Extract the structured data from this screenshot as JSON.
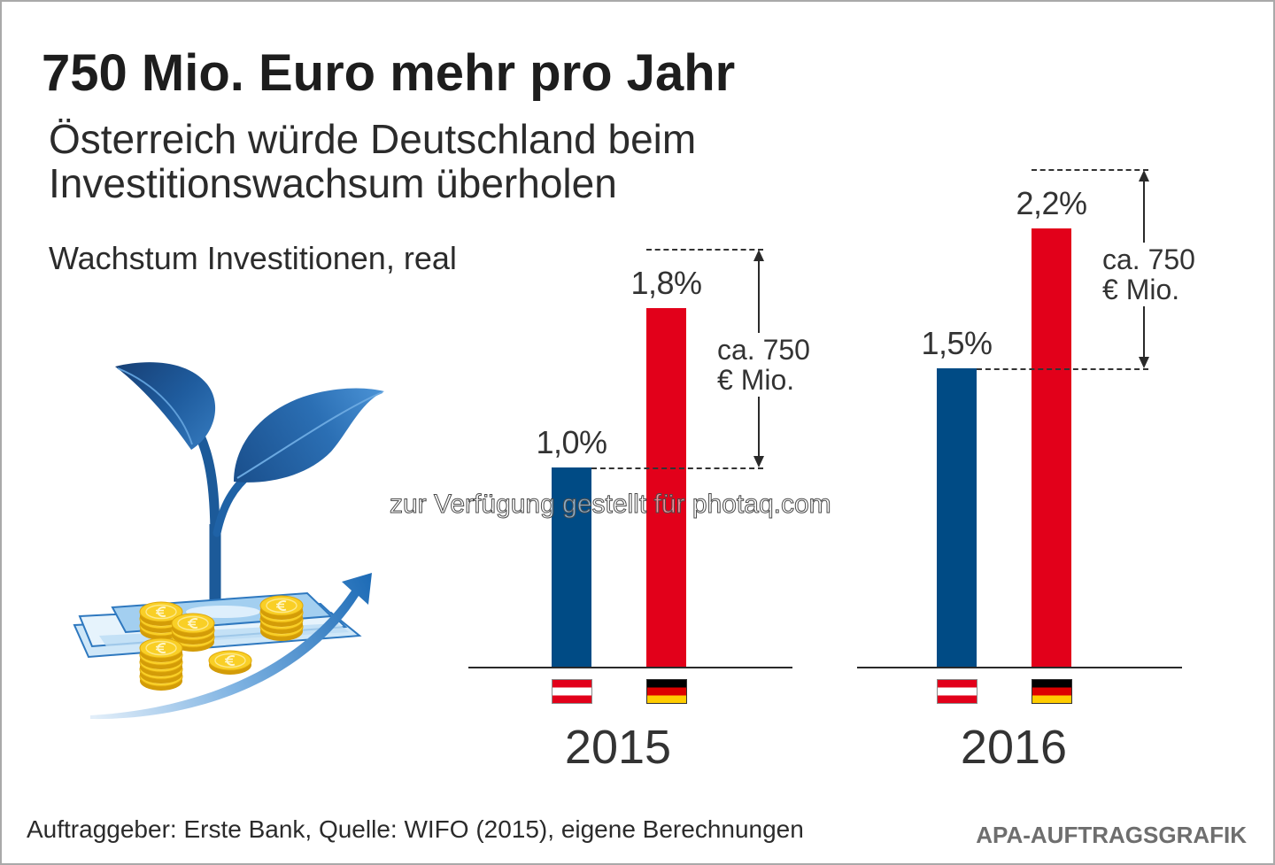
{
  "chart_data": {
    "type": "bar",
    "title": "750 Mio. Euro mehr pro Jahr",
    "subtitle": [
      "Österreich würde Deutschland beim",
      "Investitionswachsum überholen"
    ],
    "ylabel": "Wachstum Investitionen, real",
    "xlabel": "",
    "categories": [
      "2015",
      "2016"
    ],
    "series": [
      {
        "flag_icon": "austria-flag-icon",
        "color": "#004b85",
        "values": [
          1.0,
          1.5
        ],
        "data_labels": [
          "1,0%",
          "1,5%"
        ]
      },
      {
        "flag_icon": "germany-flag-icon",
        "color": "#e2001a",
        "values": [
          1.8,
          2.2
        ],
        "data_labels": [
          "1,8%",
          "2,2%"
        ]
      }
    ],
    "annotations": [
      {
        "lines": [
          "ca. 750",
          "€ Mio."
        ]
      },
      {
        "lines": [
          "ca. 750",
          "€ Mio."
        ]
      }
    ],
    "ylim": [
      0,
      2.2
    ],
    "grid": false,
    "legend": "bottom"
  },
  "footer": {
    "source": "Auftraggeber: Erste Bank, Quelle: WIFO (2015), eigene Berechnungen",
    "credit": "APA-AUFTRAGSGRAFIK"
  },
  "watermark": "zur Verfügung gestellt für photaq.com",
  "illustration_icons": [
    "plant-icon",
    "banknotes-icon",
    "euro-coins-icon",
    "growth-arrow-icon"
  ],
  "colors": {
    "title": "#1d1d1d",
    "text": "#2b2b2b",
    "credit": "#6e6e6e",
    "plant_blue": "#1c5a99"
  }
}
